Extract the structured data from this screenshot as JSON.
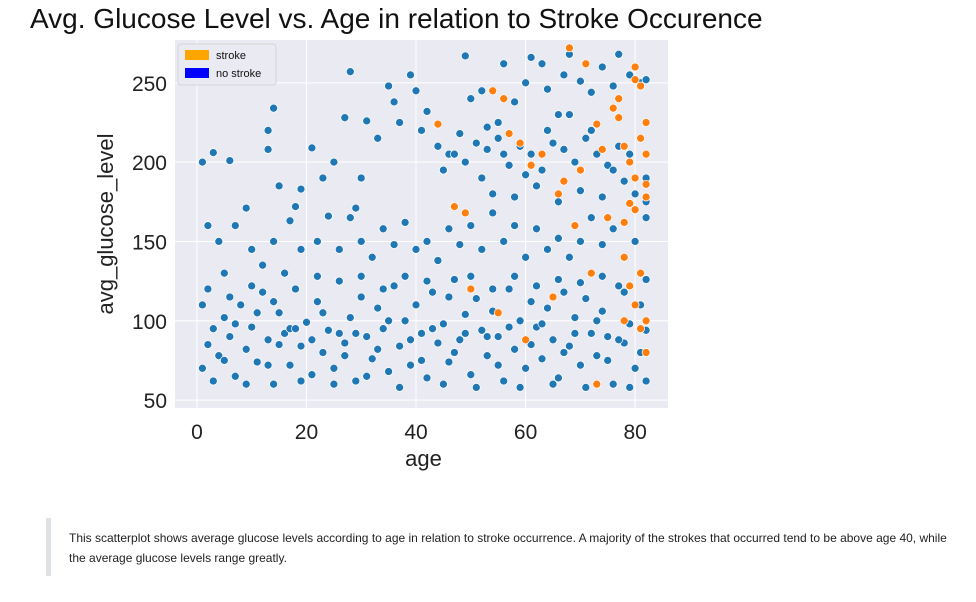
{
  "page": {
    "title": "Avg. Glucose Level vs. Age in relation to Stroke Occurence",
    "caption": "This scatterplot shows average glucose levels according to age in relation to stroke occurrence. A majority of the strokes that occurred tend to be above age 40, while the average glucose levels range greatly."
  },
  "chart_data": {
    "type": "scatter",
    "title": "Avg. Glucose Level vs. Age in relation to Stroke Occurence",
    "xlabel": "age",
    "ylabel": "avg_glucose_level",
    "xlim": [
      -4,
      86
    ],
    "ylim": [
      45,
      277
    ],
    "xticks": [
      0,
      20,
      40,
      60,
      80
    ],
    "yticks": [
      50,
      100,
      150,
      200,
      250
    ],
    "grid": true,
    "legend": {
      "placement": "top-left",
      "entries": [
        "stroke",
        "no stroke"
      ]
    },
    "colors": {
      "stroke_legend": "#ffa500",
      "no_stroke_legend": "#0000ff",
      "stroke_points": "#ff7f0e",
      "no_stroke_points": "#1f77b4",
      "plot_background": "#eaeaf2"
    },
    "series": [
      {
        "name": "no stroke",
        "points": [
          [
            1,
            200
          ],
          [
            3,
            206
          ],
          [
            6,
            201
          ],
          [
            9,
            171
          ],
          [
            13,
            208
          ],
          [
            13,
            220
          ],
          [
            14,
            234
          ],
          [
            15,
            185
          ],
          [
            18,
            172
          ],
          [
            19,
            183
          ],
          [
            21,
            209
          ],
          [
            23,
            190
          ],
          [
            25,
            200
          ],
          [
            27,
            228
          ],
          [
            28,
            257
          ],
          [
            29,
            171
          ],
          [
            30,
            190
          ],
          [
            31,
            226
          ],
          [
            33,
            215
          ],
          [
            35,
            248
          ],
          [
            36,
            238
          ],
          [
            37,
            225
          ],
          [
            39,
            255
          ],
          [
            40,
            245
          ],
          [
            41,
            220
          ],
          [
            42,
            232
          ],
          [
            44,
            210
          ],
          [
            46,
            205
          ],
          [
            48,
            218
          ],
          [
            49,
            267
          ],
          [
            50,
            240
          ],
          [
            52,
            245
          ],
          [
            53,
            222
          ],
          [
            55,
            225
          ],
          [
            56,
            262
          ],
          [
            58,
            238
          ],
          [
            60,
            250
          ],
          [
            61,
            266
          ],
          [
            63,
            262
          ],
          [
            64,
            246
          ],
          [
            66,
            230
          ],
          [
            67,
            255
          ],
          [
            68,
            268
          ],
          [
            70,
            251
          ],
          [
            72,
            244
          ],
          [
            74,
            260
          ],
          [
            76,
            248
          ],
          [
            77,
            268
          ],
          [
            79,
            255
          ],
          [
            81,
            250
          ],
          [
            82,
            252
          ],
          [
            2,
            160
          ],
          [
            4,
            150
          ],
          [
            5,
            130
          ],
          [
            7,
            160
          ],
          [
            10,
            145
          ],
          [
            12,
            135
          ],
          [
            14,
            150
          ],
          [
            16,
            130
          ],
          [
            17,
            163
          ],
          [
            19,
            145
          ],
          [
            22,
            150
          ],
          [
            24,
            166
          ],
          [
            26,
            145
          ],
          [
            28,
            165
          ],
          [
            30,
            150
          ],
          [
            32,
            140
          ],
          [
            34,
            158
          ],
          [
            36,
            148
          ],
          [
            38,
            162
          ],
          [
            40,
            145
          ],
          [
            42,
            150
          ],
          [
            44,
            138
          ],
          [
            46,
            158
          ],
          [
            48,
            148
          ],
          [
            50,
            160
          ],
          [
            52,
            145
          ],
          [
            54,
            168
          ],
          [
            56,
            150
          ],
          [
            58,
            160
          ],
          [
            60,
            140
          ],
          [
            62,
            158
          ],
          [
            64,
            145
          ],
          [
            66,
            152
          ],
          [
            68,
            140
          ],
          [
            70,
            150
          ],
          [
            72,
            165
          ],
          [
            74,
            148
          ],
          [
            76,
            158
          ],
          [
            78,
            140
          ],
          [
            80,
            150
          ],
          [
            82,
            165
          ],
          [
            45,
            195
          ],
          [
            47,
            205
          ],
          [
            49,
            200
          ],
          [
            51,
            212
          ],
          [
            53,
            208
          ],
          [
            55,
            215
          ],
          [
            57,
            198
          ],
          [
            59,
            210
          ],
          [
            61,
            205
          ],
          [
            63,
            195
          ],
          [
            65,
            212
          ],
          [
            67,
            208
          ],
          [
            69,
            200
          ],
          [
            71,
            215
          ],
          [
            73,
            205
          ],
          [
            75,
            198
          ],
          [
            77,
            210
          ],
          [
            79,
            205
          ],
          [
            81,
            215
          ],
          [
            82,
            190
          ],
          [
            52,
            190
          ],
          [
            56,
            205
          ],
          [
            60,
            192
          ],
          [
            64,
            220
          ],
          [
            68,
            230
          ],
          [
            72,
            220
          ],
          [
            76,
            195
          ],
          [
            80,
            180
          ],
          [
            54,
            180
          ],
          [
            58,
            178
          ],
          [
            62,
            185
          ],
          [
            66,
            175
          ],
          [
            70,
            182
          ],
          [
            74,
            178
          ],
          [
            78,
            188
          ],
          [
            82,
            175
          ],
          [
            1,
            70
          ],
          [
            2,
            85
          ],
          [
            3,
            95
          ],
          [
            4,
            78
          ],
          [
            5,
            102
          ],
          [
            6,
            90
          ],
          [
            7,
            65
          ],
          [
            8,
            110
          ],
          [
            9,
            82
          ],
          [
            10,
            96
          ],
          [
            11,
            74
          ],
          [
            12,
            118
          ],
          [
            13,
            88
          ],
          [
            14,
            60
          ],
          [
            15,
            105
          ],
          [
            16,
            92
          ],
          [
            17,
            72
          ],
          [
            18,
            120
          ],
          [
            19,
            84
          ],
          [
            20,
            99
          ],
          [
            21,
            66
          ],
          [
            22,
            112
          ],
          [
            23,
            80
          ],
          [
            24,
            94
          ],
          [
            25,
            70
          ],
          [
            26,
            125
          ],
          [
            27,
            86
          ],
          [
            28,
            102
          ],
          [
            29,
            62
          ],
          [
            30,
            115
          ],
          [
            31,
            90
          ],
          [
            32,
            76
          ],
          [
            33,
            108
          ],
          [
            34,
            95
          ],
          [
            35,
            68
          ],
          [
            36,
            122
          ],
          [
            37,
            84
          ],
          [
            38,
            100
          ],
          [
            39,
            72
          ],
          [
            40,
            110
          ],
          [
            41,
            92
          ],
          [
            42,
            64
          ],
          [
            43,
            118
          ],
          [
            44,
            86
          ],
          [
            45,
            98
          ],
          [
            46,
            74
          ],
          [
            47,
            126
          ],
          [
            48,
            88
          ],
          [
            49,
            104
          ],
          [
            50,
            66
          ],
          [
            51,
            114
          ],
          [
            52,
            94
          ],
          [
            53,
            78
          ],
          [
            54,
            106
          ],
          [
            55,
            90
          ],
          [
            56,
            62
          ],
          [
            57,
            120
          ],
          [
            58,
            82
          ],
          [
            59,
            100
          ],
          [
            60,
            70
          ],
          [
            61,
            112
          ],
          [
            62,
            96
          ],
          [
            63,
            76
          ],
          [
            64,
            108
          ],
          [
            65,
            88
          ],
          [
            66,
            64
          ],
          [
            67,
            118
          ],
          [
            68,
            84
          ],
          [
            69,
            102
          ],
          [
            70,
            72
          ],
          [
            71,
            114
          ],
          [
            72,
            92
          ],
          [
            73,
            78
          ],
          [
            74,
            106
          ],
          [
            75,
            90
          ],
          [
            76,
            60
          ],
          [
            77,
            122
          ],
          [
            78,
            86
          ],
          [
            79,
            98
          ],
          [
            80,
            70
          ],
          [
            81,
            110
          ],
          [
            82,
            94
          ],
          [
            1,
            110
          ],
          [
            3,
            62
          ],
          [
            5,
            75
          ],
          [
            7,
            98
          ],
          [
            9,
            60
          ],
          [
            11,
            105
          ],
          [
            13,
            72
          ],
          [
            15,
            85
          ],
          [
            17,
            95
          ],
          [
            19,
            62
          ],
          [
            21,
            88
          ],
          [
            23,
            105
          ],
          [
            25,
            60
          ],
          [
            27,
            78
          ],
          [
            29,
            92
          ],
          [
            31,
            65
          ],
          [
            33,
            82
          ],
          [
            35,
            100
          ],
          [
            37,
            58
          ],
          [
            39,
            88
          ],
          [
            41,
            75
          ],
          [
            43,
            95
          ],
          [
            45,
            60
          ],
          [
            47,
            80
          ],
          [
            49,
            92
          ],
          [
            51,
            58
          ],
          [
            53,
            90
          ],
          [
            55,
            72
          ],
          [
            57,
            96
          ],
          [
            59,
            58
          ],
          [
            61,
            85
          ],
          [
            63,
            98
          ],
          [
            65,
            60
          ],
          [
            67,
            80
          ],
          [
            69,
            92
          ],
          [
            71,
            58
          ],
          [
            73,
            100
          ],
          [
            75,
            75
          ],
          [
            77,
            88
          ],
          [
            79,
            58
          ],
          [
            81,
            80
          ],
          [
            82,
            62
          ],
          [
            2,
            120
          ],
          [
            6,
            115
          ],
          [
            10,
            122
          ],
          [
            14,
            112
          ],
          [
            18,
            95
          ],
          [
            22,
            128
          ],
          [
            26,
            92
          ],
          [
            30,
            128
          ],
          [
            34,
            120
          ],
          [
            38,
            128
          ],
          [
            42,
            125
          ],
          [
            46,
            115
          ],
          [
            50,
            128
          ],
          [
            54,
            120
          ],
          [
            58,
            128
          ],
          [
            62,
            122
          ],
          [
            66,
            126
          ],
          [
            70,
            124
          ],
          [
            74,
            128
          ],
          [
            78,
            118
          ],
          [
            82,
            126
          ]
        ]
      },
      {
        "name": "stroke",
        "points": [
          [
            44,
            224
          ],
          [
            47,
            172
          ],
          [
            49,
            168
          ],
          [
            54,
            245
          ],
          [
            56,
            240
          ],
          [
            57,
            218
          ],
          [
            59,
            212
          ],
          [
            61,
            198
          ],
          [
            63,
            205
          ],
          [
            66,
            180
          ],
          [
            67,
            188
          ],
          [
            68,
            272
          ],
          [
            69,
            160
          ],
          [
            70,
            195
          ],
          [
            71,
            262
          ],
          [
            72,
            130
          ],
          [
            73,
            224
          ],
          [
            74,
            208
          ],
          [
            75,
            165
          ],
          [
            76,
            234
          ],
          [
            77,
            240
          ],
          [
            77,
            228
          ],
          [
            78,
            140
          ],
          [
            78,
            162
          ],
          [
            78,
            210
          ],
          [
            79,
            174
          ],
          [
            79,
            200
          ],
          [
            80,
            260
          ],
          [
            80,
            252
          ],
          [
            80,
            190
          ],
          [
            80,
            170
          ],
          [
            80,
            110
          ],
          [
            81,
            248
          ],
          [
            81,
            215
          ],
          [
            81,
            130
          ],
          [
            81,
            95
          ],
          [
            82,
            178
          ],
          [
            82,
            186
          ],
          [
            82,
            205
          ],
          [
            82,
            225
          ],
          [
            82,
            100
          ],
          [
            82,
            80
          ],
          [
            79,
            122
          ],
          [
            78,
            100
          ],
          [
            73,
            60
          ],
          [
            65,
            115
          ],
          [
            60,
            88
          ],
          [
            55,
            105
          ],
          [
            50,
            120
          ]
        ]
      }
    ]
  }
}
